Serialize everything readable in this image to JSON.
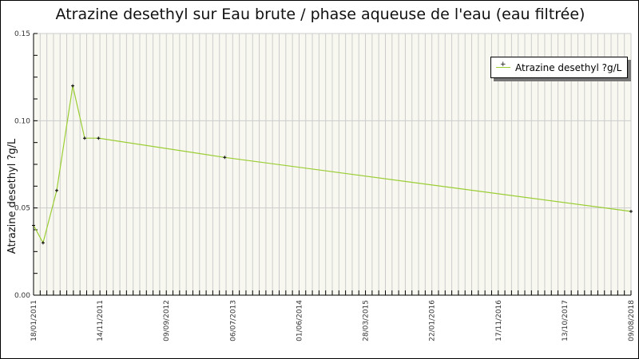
{
  "chart_data": {
    "type": "line",
    "title": "Atrazine desethyl sur Eau brute / phase aqueuse de l'eau (eau filtrée)",
    "xlabel": "",
    "ylabel": "Atrazine desethyl ?g/L",
    "ylim": [
      0,
      0.15
    ],
    "y_ticks": [
      "0.00",
      "0.05",
      "0.10",
      "0.15"
    ],
    "xlim": [
      "2011-01-18",
      "2018-08-09"
    ],
    "x_ticks": [
      "18/01/2011",
      "14/11/2011",
      "09/09/2012",
      "06/07/2013",
      "01/06/2014",
      "28/03/2015",
      "22/01/2016",
      "17/11/2016",
      "13/10/2017",
      "09/08/2018"
    ],
    "grid": true,
    "legend_position": "top-right",
    "series": [
      {
        "name": "Atrazine desethyl ?g/L",
        "color": "#9acd32",
        "x": [
          "2011-01-18",
          "2011-03-03",
          "2011-05-05",
          "2011-07-18",
          "2011-09-11",
          "2011-11-14",
          "2013-06-19",
          "2018-08-09"
        ],
        "y": [
          0.04,
          0.03,
          0.06,
          0.12,
          0.09,
          0.09,
          0.079,
          0.048
        ]
      }
    ]
  }
}
